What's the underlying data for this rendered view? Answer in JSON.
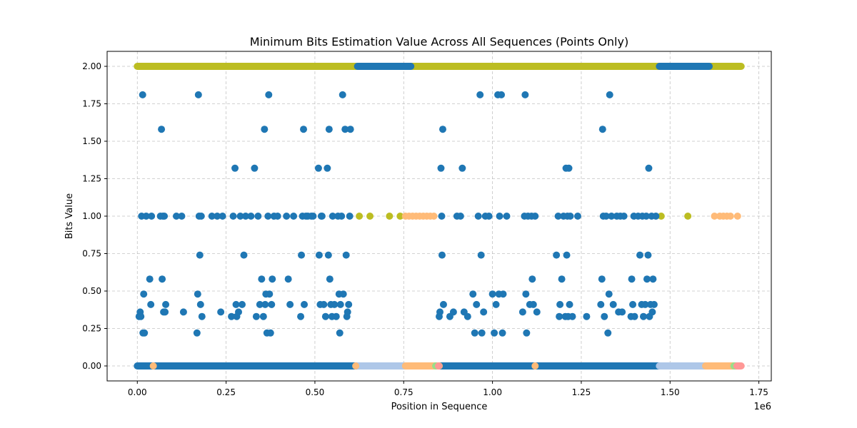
{
  "chart_data": {
    "type": "scatter",
    "title": "Minimum Bits Estimation Value Across All Sequences (Points Only)",
    "xlabel": "Position in Sequence",
    "ylabel": "Bits Value",
    "x_offset_label": "1e6",
    "xlim": [
      -85000,
      1785000
    ],
    "ylim": [
      -0.1,
      2.1
    ],
    "x_ticks": [
      0,
      250000,
      500000,
      750000,
      1000000,
      1250000,
      1500000,
      1750000
    ],
    "x_tick_labels": [
      "0.00",
      "0.25",
      "0.50",
      "0.75",
      "1.00",
      "1.25",
      "1.50",
      "1.75"
    ],
    "y_ticks": [
      0,
      0.25,
      0.5,
      0.75,
      1.0,
      1.25,
      1.5,
      1.75,
      2.0
    ],
    "y_tick_labels": [
      "0.00",
      "0.25",
      "0.50",
      "0.75",
      "1.00",
      "1.25",
      "1.50",
      "1.75",
      "2.00"
    ],
    "grid": true,
    "colors": [
      "#1f77b4",
      "#bcbd22",
      "#ffbb78",
      "#aec7e8",
      "#98df8a",
      "#ff9896"
    ],
    "series": [
      {
        "color": "#bcbd22",
        "bands": [
          [
            0,
            2.0,
            620000
          ],
          [
            770000,
            2.0,
            1470000
          ],
          [
            1610000,
            2.0,
            1700000
          ]
        ],
        "points": [
          [
            625000,
            1.0
          ],
          [
            655000,
            1.0
          ],
          [
            710000,
            1.0
          ],
          [
            740000,
            1.0
          ],
          [
            1550000,
            1.0
          ],
          [
            1475000,
            1.0
          ]
        ]
      },
      {
        "color": "#1f77b4",
        "bands": [
          [
            0,
            0.0,
            620000
          ],
          [
            850000,
            0.0,
            1470000
          ],
          [
            620000,
            2.0,
            770000
          ],
          [
            1470000,
            2.0,
            1610000
          ]
        ],
        "points": [
          [
            5000,
            0.33
          ],
          [
            8000,
            0.36
          ],
          [
            10000,
            0.33
          ],
          [
            12000,
            1.0
          ],
          [
            15000,
            1.81
          ],
          [
            16000,
            0.22
          ],
          [
            18000,
            0.48
          ],
          [
            20000,
            0.22
          ],
          [
            25000,
            1.0
          ],
          [
            35000,
            0.58
          ],
          [
            38000,
            0.41
          ],
          [
            40000,
            1.0
          ],
          [
            65000,
            1.0
          ],
          [
            68000,
            1.58
          ],
          [
            70000,
            0.58
          ],
          [
            72000,
            1.0
          ],
          [
            74000,
            0.36
          ],
          [
            76000,
            1.0
          ],
          [
            78000,
            0.36
          ],
          [
            80000,
            0.41
          ],
          [
            110000,
            1.0
          ],
          [
            125000,
            1.0
          ],
          [
            130000,
            0.36
          ],
          [
            168000,
            0.22
          ],
          [
            170000,
            0.48
          ],
          [
            172000,
            1.81
          ],
          [
            174000,
            1.0
          ],
          [
            176000,
            0.74
          ],
          [
            178000,
            0.41
          ],
          [
            180000,
            1.0
          ],
          [
            182000,
            0.33
          ],
          [
            210000,
            1.0
          ],
          [
            225000,
            1.0
          ],
          [
            235000,
            0.36
          ],
          [
            240000,
            1.0
          ],
          [
            265000,
            0.33
          ],
          [
            270000,
            1.0
          ],
          [
            275000,
            1.32
          ],
          [
            278000,
            0.41
          ],
          [
            280000,
            0.33
          ],
          [
            285000,
            0.36
          ],
          [
            290000,
            1.0
          ],
          [
            295000,
            0.41
          ],
          [
            300000,
            0.74
          ],
          [
            305000,
            1.0
          ],
          [
            320000,
            1.0
          ],
          [
            330000,
            1.32
          ],
          [
            335000,
            0.33
          ],
          [
            340000,
            1.0
          ],
          [
            345000,
            0.41
          ],
          [
            350000,
            0.58
          ],
          [
            355000,
            0.33
          ],
          [
            358000,
            1.58
          ],
          [
            360000,
            0.41
          ],
          [
            362000,
            0.48
          ],
          [
            365000,
            0.22
          ],
          [
            368000,
            1.0
          ],
          [
            370000,
            1.81
          ],
          [
            372000,
            0.48
          ],
          [
            375000,
            0.22
          ],
          [
            378000,
            0.41
          ],
          [
            380000,
            0.58
          ],
          [
            385000,
            1.0
          ],
          [
            395000,
            1.0
          ],
          [
            420000,
            1.0
          ],
          [
            425000,
            0.58
          ],
          [
            430000,
            0.41
          ],
          [
            440000,
            1.0
          ],
          [
            460000,
            0.33
          ],
          [
            462000,
            0.74
          ],
          [
            465000,
            1.0
          ],
          [
            468000,
            1.58
          ],
          [
            470000,
            0.41
          ],
          [
            475000,
            1.0
          ],
          [
            480000,
            1.0
          ],
          [
            490000,
            1.0
          ],
          [
            495000,
            1.0
          ],
          [
            510000,
            1.32
          ],
          [
            512000,
            0.74
          ],
          [
            515000,
            0.41
          ],
          [
            518000,
            1.0
          ],
          [
            520000,
            1.0
          ],
          [
            525000,
            0.41
          ],
          [
            530000,
            0.33
          ],
          [
            535000,
            1.32
          ],
          [
            538000,
            0.74
          ],
          [
            540000,
            1.58
          ],
          [
            542000,
            0.58
          ],
          [
            545000,
            0.41
          ],
          [
            548000,
            0.33
          ],
          [
            550000,
            1.0
          ],
          [
            555000,
            0.41
          ],
          [
            560000,
            0.33
          ],
          [
            565000,
            1.0
          ],
          [
            568000,
            0.48
          ],
          [
            570000,
            0.22
          ],
          [
            572000,
            0.41
          ],
          [
            575000,
            1.0
          ],
          [
            578000,
            1.81
          ],
          [
            580000,
            0.48
          ],
          [
            585000,
            1.58
          ],
          [
            588000,
            0.74
          ],
          [
            590000,
            0.33
          ],
          [
            592000,
            0.36
          ],
          [
            595000,
            0.41
          ],
          [
            598000,
            1.0
          ],
          [
            600000,
            1.58
          ],
          [
            850000,
            0.33
          ],
          [
            852000,
            0.36
          ],
          [
            855000,
            1.32
          ],
          [
            857000,
            1.0
          ],
          [
            858000,
            0.74
          ],
          [
            860000,
            1.58
          ],
          [
            862000,
            0.41
          ],
          [
            880000,
            0.33
          ],
          [
            890000,
            0.36
          ],
          [
            900000,
            1.0
          ],
          [
            910000,
            1.0
          ],
          [
            915000,
            1.32
          ],
          [
            920000,
            0.36
          ],
          [
            930000,
            0.33
          ],
          [
            945000,
            0.48
          ],
          [
            950000,
            0.22
          ],
          [
            955000,
            0.41
          ],
          [
            960000,
            1.0
          ],
          [
            965000,
            1.81
          ],
          [
            968000,
            0.74
          ],
          [
            970000,
            0.22
          ],
          [
            975000,
            0.36
          ],
          [
            980000,
            1.0
          ],
          [
            990000,
            1.0
          ],
          [
            1000000,
            0.48
          ],
          [
            1005000,
            0.22
          ],
          [
            1010000,
            0.41
          ],
          [
            1015000,
            1.81
          ],
          [
            1018000,
            0.48
          ],
          [
            1020000,
            1.0
          ],
          [
            1025000,
            1.81
          ],
          [
            1028000,
            0.22
          ],
          [
            1030000,
            0.48
          ],
          [
            1040000,
            1.0
          ],
          [
            1085000,
            0.36
          ],
          [
            1090000,
            1.0
          ],
          [
            1092000,
            1.81
          ],
          [
            1094000,
            0.48
          ],
          [
            1096000,
            0.22
          ],
          [
            1100000,
            1.0
          ],
          [
            1105000,
            0.41
          ],
          [
            1110000,
            1.0
          ],
          [
            1112000,
            0.58
          ],
          [
            1115000,
            0.41
          ],
          [
            1120000,
            1.0
          ],
          [
            1125000,
            0.36
          ],
          [
            1180000,
            0.74
          ],
          [
            1185000,
            1.0
          ],
          [
            1188000,
            0.33
          ],
          [
            1190000,
            0.41
          ],
          [
            1195000,
            0.58
          ],
          [
            1200000,
            1.0
          ],
          [
            1205000,
            0.33
          ],
          [
            1207000,
            1.32
          ],
          [
            1209000,
            0.74
          ],
          [
            1211000,
            1.0
          ],
          [
            1213000,
            0.33
          ],
          [
            1215000,
            1.32
          ],
          [
            1217000,
            0.41
          ],
          [
            1219000,
            1.0
          ],
          [
            1225000,
            0.33
          ],
          [
            1240000,
            1.0
          ],
          [
            1265000,
            0.33
          ],
          [
            1305000,
            0.41
          ],
          [
            1308000,
            0.58
          ],
          [
            1310000,
            1.58
          ],
          [
            1312000,
            1.0
          ],
          [
            1315000,
            0.33
          ],
          [
            1320000,
            1.0
          ],
          [
            1325000,
            0.22
          ],
          [
            1328000,
            0.48
          ],
          [
            1330000,
            1.81
          ],
          [
            1335000,
            1.0
          ],
          [
            1340000,
            0.41
          ],
          [
            1350000,
            1.0
          ],
          [
            1355000,
            0.36
          ],
          [
            1360000,
            1.0
          ],
          [
            1365000,
            0.36
          ],
          [
            1370000,
            1.0
          ],
          [
            1390000,
            0.33
          ],
          [
            1392000,
            0.58
          ],
          [
            1395000,
            0.41
          ],
          [
            1398000,
            1.0
          ],
          [
            1400000,
            0.33
          ],
          [
            1410000,
            1.0
          ],
          [
            1415000,
            0.74
          ],
          [
            1420000,
            0.41
          ],
          [
            1422000,
            1.0
          ],
          [
            1425000,
            0.33
          ],
          [
            1430000,
            0.41
          ],
          [
            1433000,
            1.0
          ],
          [
            1435000,
            0.58
          ],
          [
            1438000,
            0.74
          ],
          [
            1440000,
            1.32
          ],
          [
            1442000,
            0.33
          ],
          [
            1445000,
            0.41
          ],
          [
            1448000,
            1.0
          ],
          [
            1450000,
            0.36
          ],
          [
            1452000,
            0.58
          ],
          [
            1455000,
            0.41
          ],
          [
            1460000,
            1.0
          ]
        ]
      },
      {
        "color": "#aec7e8",
        "bands": [
          [
            620000,
            0.0,
            760000
          ],
          [
            1470000,
            0.0,
            1600000
          ]
        ],
        "points": []
      },
      {
        "color": "#ffbb78",
        "bands": [
          [
            755000,
            0.0,
            850000
          ],
          [
            1600000,
            0.0,
            1680000
          ]
        ],
        "points": [
          [
            45000,
            0.0
          ],
          [
            615000,
            0.0
          ],
          [
            1120000,
            0.0
          ],
          [
            755000,
            1.0
          ],
          [
            765000,
            1.0
          ],
          [
            775000,
            1.0
          ],
          [
            785000,
            1.0
          ],
          [
            795000,
            1.0
          ],
          [
            805000,
            1.0
          ],
          [
            815000,
            1.0
          ],
          [
            825000,
            1.0
          ],
          [
            835000,
            1.0
          ],
          [
            1625000,
            1.0
          ],
          [
            1640000,
            1.0
          ],
          [
            1650000,
            1.0
          ],
          [
            1660000,
            1.0
          ],
          [
            1670000,
            1.0
          ],
          [
            1690000,
            1.0
          ]
        ]
      },
      {
        "color": "#98df8a",
        "bands": [
          [
            1680000,
            0.0,
            1688000
          ]
        ],
        "points": [
          [
            840000,
            0.0
          ]
        ]
      },
      {
        "color": "#ff9896",
        "bands": [
          [
            1688000,
            0.0,
            1700000
          ]
        ],
        "points": [
          [
            848000,
            0.0
          ]
        ]
      }
    ]
  }
}
